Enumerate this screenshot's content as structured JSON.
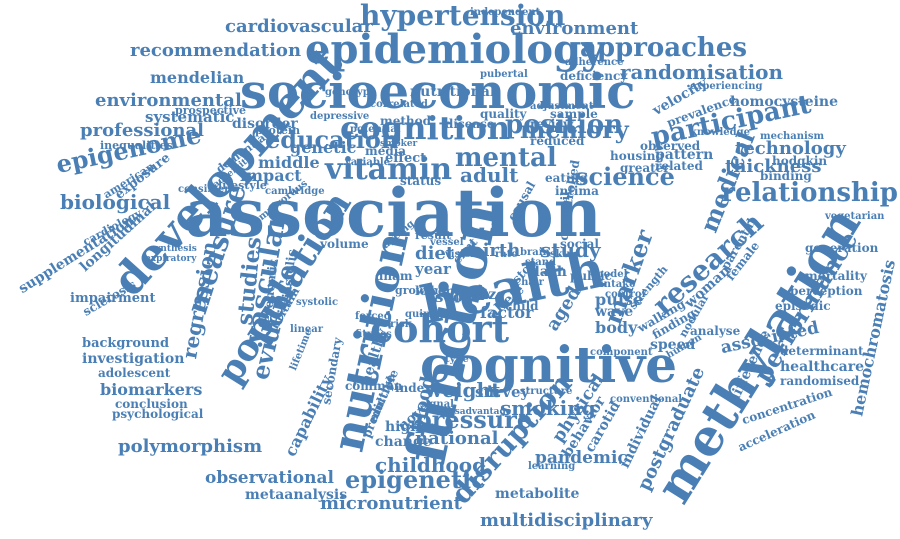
{
  "colors": {
    "text": "#4a7fb5",
    "background": "#ffffff"
  },
  "words": [
    "association",
    "health",
    "cognitive",
    "function",
    "methylation",
    "socioeconomic",
    "epidemiology",
    "development",
    "nutrition",
    "population",
    "cohort",
    "hypertension",
    "cognition",
    "vitamin",
    "participant",
    "approaches",
    "relationship",
    "research",
    "measure",
    "position",
    "vascular",
    "mental",
    "memory",
    "education",
    "evidence",
    "performance",
    "epigenome",
    "medical",
    "pressure",
    "epigenetic",
    "smoking",
    "disruption",
    "marker",
    "science",
    "studies",
    "environment",
    "randomisation",
    "recommendation",
    "environmental",
    "cardiovascular",
    "mendelian",
    "professional",
    "biological",
    "technology",
    "thickness",
    "adult",
    "aged",
    "study",
    "blood",
    "weight",
    "childhood",
    "national",
    "multidisciplinary",
    "micronutrient",
    "observational",
    "metaanalysis",
    "polymorphism",
    "pandemic",
    "postgraduate",
    "physical",
    "associated",
    "hemochromatosis",
    "healthcare",
    "determinant",
    "perception",
    "concentration",
    "randomised",
    "difference",
    "speed",
    "body",
    "pulse",
    "wave",
    "factor",
    "score",
    "diet",
    "birth",
    "year",
    "size",
    "dash",
    "regression",
    "biomarkers",
    "conclusion",
    "psychological",
    "adolescent",
    "investigation",
    "background",
    "impairment",
    "supplementation",
    "longitudinal",
    "cardiology",
    "exposure",
    "systematic",
    "impact",
    "genetic",
    "middle",
    "disorder",
    "genotype",
    "nutritional",
    "velocity",
    "homocysteine",
    "mortality",
    "generation",
    "vegetarian",
    "analyse",
    "finding",
    "woman",
    "female",
    "parental",
    "capability",
    "healthy",
    "change",
    "higher",
    "index",
    "survey",
    "novel",
    "metabolite",
    "individual",
    "behavior",
    "carotid",
    "prevalence",
    "acceleration",
    "dementia",
    "lifestyle",
    "inequalities",
    "independent",
    "prospective",
    "deficiency",
    "adherence",
    "experiencing",
    "pubertal",
    "sample",
    "quality",
    "review",
    "disease",
    "method",
    "potential",
    "media",
    "effect",
    "variable",
    "reduced",
    "observed",
    "pattern",
    "related",
    "greater",
    "housing",
    "eating",
    "intima",
    "controlled",
    "council",
    "causal",
    "status",
    "ageing",
    "social",
    "public",
    "model",
    "intake",
    "strength",
    "walking",
    "nodular",
    "human",
    "component",
    "control",
    "allele",
    "child",
    "plan",
    "growth",
    "lower",
    "dnam",
    "quintile",
    "stop",
    "cimt",
    "result",
    "volume",
    "diastolic",
    "economic",
    "britain",
    "systolic",
    "omnivorous",
    "american",
    "synthesis",
    "expiratory",
    "sclerosis",
    "protein",
    "adversity",
    "consistent",
    "cambridge",
    "depressive",
    "correlated",
    "knowledge",
    "mechanism",
    "hodgkin",
    "binding",
    "adjustment",
    "learning",
    "structure",
    "conventional",
    "predictive",
    "multiple",
    "secondary",
    "common",
    "disadvantage",
    "episodic",
    "lifetime",
    "linear",
    "fitness",
    "forced",
    "smoker",
    "risk",
    "signal",
    "type",
    "vessel",
    "vision",
    "rate",
    "chair",
    "stand",
    "brain",
    "skin"
  ]
}
